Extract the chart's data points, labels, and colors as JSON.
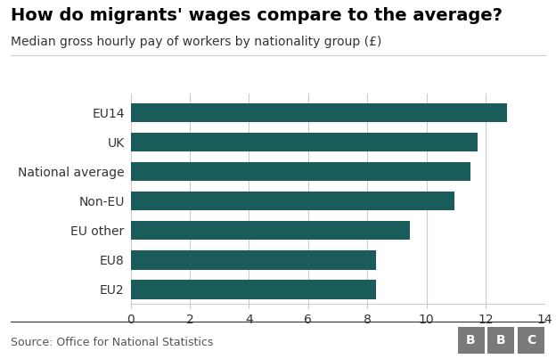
{
  "title": "How do migrants' wages compare to the average?",
  "subtitle": "Median gross hourly pay of workers by nationality group (£)",
  "source": "Source: Office for National Statistics",
  "categories": [
    "EU2",
    "EU8",
    "EU other",
    "Non-EU",
    "National average",
    "UK",
    "EU14"
  ],
  "values": [
    8.28,
    8.3,
    9.45,
    10.95,
    11.48,
    11.72,
    12.72
  ],
  "bar_color": "#1a5c5a",
  "xlim": [
    0,
    14
  ],
  "xticks": [
    0,
    2,
    4,
    6,
    8,
    10,
    12,
    14
  ],
  "background_color": "#ffffff",
  "grid_color": "#cccccc",
  "title_fontsize": 14,
  "subtitle_fontsize": 10,
  "label_fontsize": 10,
  "tick_fontsize": 10,
  "source_fontsize": 9,
  "bbc_fontsize": 10,
  "bbc_box_color": "#7a7a7a"
}
